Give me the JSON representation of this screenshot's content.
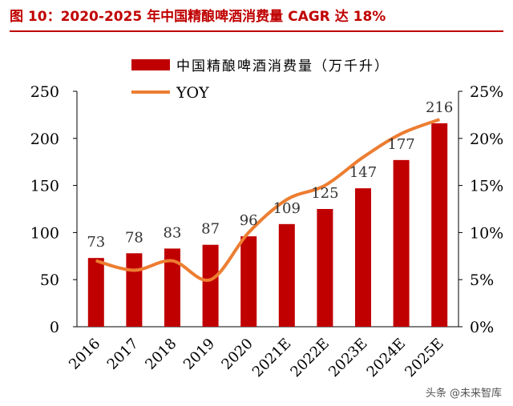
{
  "figure_title": "图 10：2020-2025 年中国精酿啤酒消费量 CAGR 达 18%",
  "watermark": "头条 @未来智库",
  "colors": {
    "bar": "#c00000",
    "line": "#ed7d31",
    "axis": "#000000",
    "title": "#c00000"
  },
  "chart_data": {
    "type": "bar",
    "categories": [
      "2016",
      "2017",
      "2018",
      "2019",
      "2020",
      "2021E",
      "2022E",
      "2023E",
      "2024E",
      "2025E"
    ],
    "series": [
      {
        "name": "中国精酿啤酒消费量（万千升）",
        "type": "bar",
        "axis": "left",
        "values": [
          73,
          78,
          83,
          87,
          96,
          109,
          125,
          147,
          177,
          216
        ]
      },
      {
        "name": "YOY",
        "type": "line",
        "axis": "right",
        "values": [
          7.0,
          6.0,
          7.0,
          5.0,
          10.0,
          13.5,
          15.0,
          18.0,
          20.5,
          22.0
        ]
      }
    ],
    "data_labels": [
      "73",
      "78",
      "83",
      "87",
      "96",
      "109",
      "125",
      "147",
      "177",
      "216"
    ],
    "y_left": {
      "ticks": [
        "0",
        "50",
        "100",
        "150",
        "200",
        "250"
      ],
      "ylim": [
        0,
        250
      ]
    },
    "y_right": {
      "ticks": [
        "0%",
        "5%",
        "10%",
        "15%",
        "20%",
        "25%"
      ],
      "ylim": [
        0,
        25
      ]
    },
    "grid": false,
    "legend": "top"
  }
}
